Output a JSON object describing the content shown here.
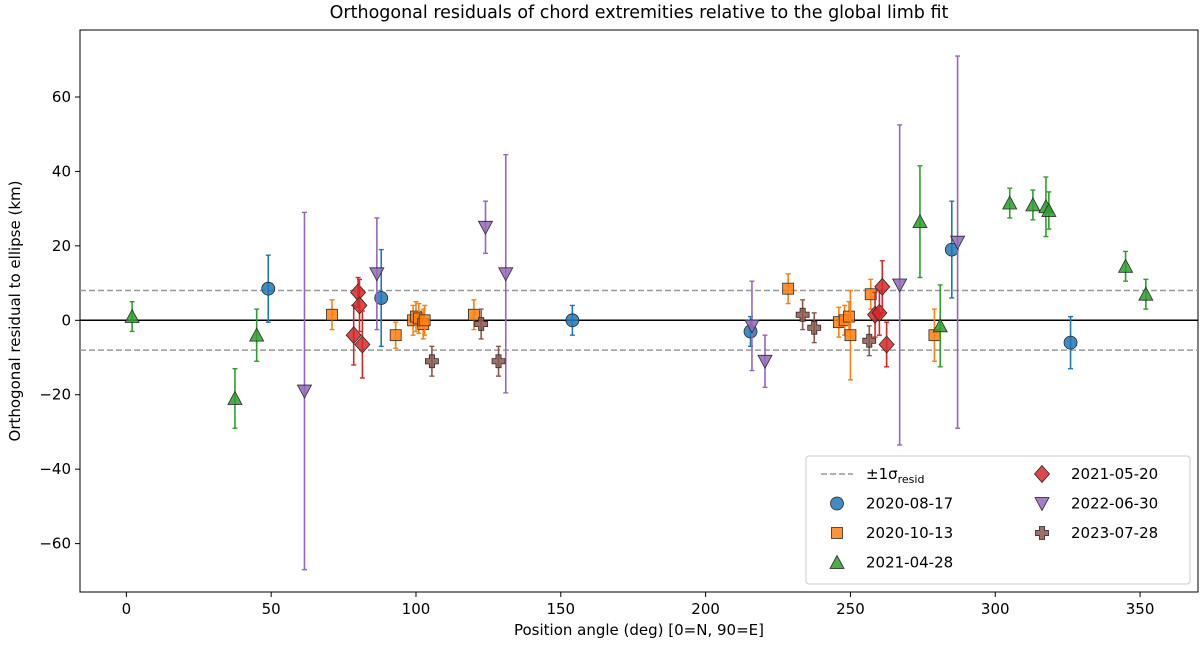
{
  "chart_data": {
    "type": "scatter",
    "title": "Orthogonal residuals of chord extremities relative to the global limb fit",
    "xlabel": "Position angle (deg) [0=N, 90=E]",
    "ylabel": "Orthogonal residual to ellipse (km)",
    "xlim": [
      -16,
      370
    ],
    "ylim": [
      -73,
      78
    ],
    "xticks": [
      0,
      50,
      100,
      150,
      200,
      250,
      300,
      350
    ],
    "yticks": [
      -60,
      -40,
      -20,
      0,
      20,
      40,
      60
    ],
    "ytick_labels": [
      "−60",
      "−40",
      "−20",
      "0",
      "20",
      "40",
      "60"
    ],
    "zero_line": 0,
    "sigma_band": 8,
    "legend_position": "lower right",
    "legend_label_prefix": "±1σ",
    "legend_label_sub": "resid",
    "series": [
      {
        "name": "2020-08-17",
        "marker": "circle",
        "color": "#1f77b4",
        "points": [
          {
            "x": 49,
            "y": 8.5,
            "err": 9
          },
          {
            "x": 88,
            "y": 6,
            "err": 13
          },
          {
            "x": 154,
            "y": 0,
            "err": 4
          },
          {
            "x": 215.5,
            "y": -3,
            "err": 4
          },
          {
            "x": 285,
            "y": 19,
            "err": 13
          },
          {
            "x": 326,
            "y": -6,
            "err": 7
          }
        ]
      },
      {
        "name": "2020-10-13",
        "marker": "square",
        "color": "#ff7f0e",
        "points": [
          {
            "x": 71,
            "y": 1.5,
            "err": 4
          },
          {
            "x": 93,
            "y": -4,
            "err": 3.5
          },
          {
            "x": 99,
            "y": 0,
            "err": 4
          },
          {
            "x": 100,
            "y": 1,
            "err": 4
          },
          {
            "x": 101,
            "y": 0.5,
            "err": 4
          },
          {
            "x": 102.5,
            "y": -1,
            "err": 4
          },
          {
            "x": 103,
            "y": 0,
            "err": 4
          },
          {
            "x": 120,
            "y": 1.5,
            "err": 4
          },
          {
            "x": 228.5,
            "y": 8.5,
            "err": 4
          },
          {
            "x": 246,
            "y": -0.5,
            "err": 4
          },
          {
            "x": 248,
            "y": 0,
            "err": 4
          },
          {
            "x": 249.5,
            "y": 1,
            "err": 4
          },
          {
            "x": 250,
            "y": -4,
            "err": 12
          },
          {
            "x": 257,
            "y": 7,
            "err": 4
          },
          {
            "x": 279,
            "y": -4,
            "err": 7
          }
        ]
      },
      {
        "name": "2021-04-28",
        "marker": "triangle-up",
        "color": "#2ca02c",
        "points": [
          {
            "x": 2,
            "y": 1,
            "err": 4
          },
          {
            "x": 37.5,
            "y": -21,
            "err": 8
          },
          {
            "x": 45,
            "y": -4,
            "err": 7
          },
          {
            "x": 274,
            "y": 26.5,
            "err": 15
          },
          {
            "x": 281,
            "y": -1.5,
            "err": 11
          },
          {
            "x": 305,
            "y": 31.5,
            "err": 4
          },
          {
            "x": 313,
            "y": 31,
            "err": 4
          },
          {
            "x": 317.5,
            "y": 30.5,
            "err": 8
          },
          {
            "x": 318.5,
            "y": 29.5,
            "err": 5
          },
          {
            "x": 345,
            "y": 14.5,
            "err": 4
          },
          {
            "x": 352,
            "y": 7,
            "err": 4
          }
        ]
      },
      {
        "name": "2021-05-20",
        "marker": "diamond",
        "color": "#d62728",
        "points": [
          {
            "x": 78.5,
            "y": -4,
            "err": 8
          },
          {
            "x": 80,
            "y": 7.5,
            "err": 4
          },
          {
            "x": 80.5,
            "y": 4,
            "err": 7
          },
          {
            "x": 81.5,
            "y": -6.5,
            "err": 9
          },
          {
            "x": 258.5,
            "y": 1.5,
            "err": 6
          },
          {
            "x": 260,
            "y": 2,
            "err": 6
          },
          {
            "x": 261,
            "y": 9,
            "err": 7
          },
          {
            "x": 262.5,
            "y": -6.5,
            "err": 6
          }
        ]
      },
      {
        "name": "2022-06-30",
        "marker": "triangle-down",
        "color": "#9467bd",
        "points": [
          {
            "x": 61.5,
            "y": -19,
            "err": 48
          },
          {
            "x": 86.5,
            "y": 12.5,
            "err": 15
          },
          {
            "x": 124,
            "y": 25,
            "err": 7
          },
          {
            "x": 131,
            "y": 12.5,
            "err": 32
          },
          {
            "x": 216,
            "y": -1.5,
            "err": 12
          },
          {
            "x": 220.5,
            "y": -11,
            "err": 7
          },
          {
            "x": 267,
            "y": 9.5,
            "err": 43
          },
          {
            "x": 287,
            "y": 21,
            "err": 50
          }
        ]
      },
      {
        "name": "2023-07-28",
        "marker": "plus",
        "color": "#8c564b",
        "points": [
          {
            "x": 105.5,
            "y": -11,
            "err": 4
          },
          {
            "x": 122.5,
            "y": -1,
            "err": 4
          },
          {
            "x": 128.5,
            "y": -11,
            "err": 4
          },
          {
            "x": 233.5,
            "y": 1.5,
            "err": 4
          },
          {
            "x": 237.5,
            "y": -2,
            "err": 4
          },
          {
            "x": 256.5,
            "y": -5.5,
            "err": 4
          }
        ]
      }
    ]
  }
}
